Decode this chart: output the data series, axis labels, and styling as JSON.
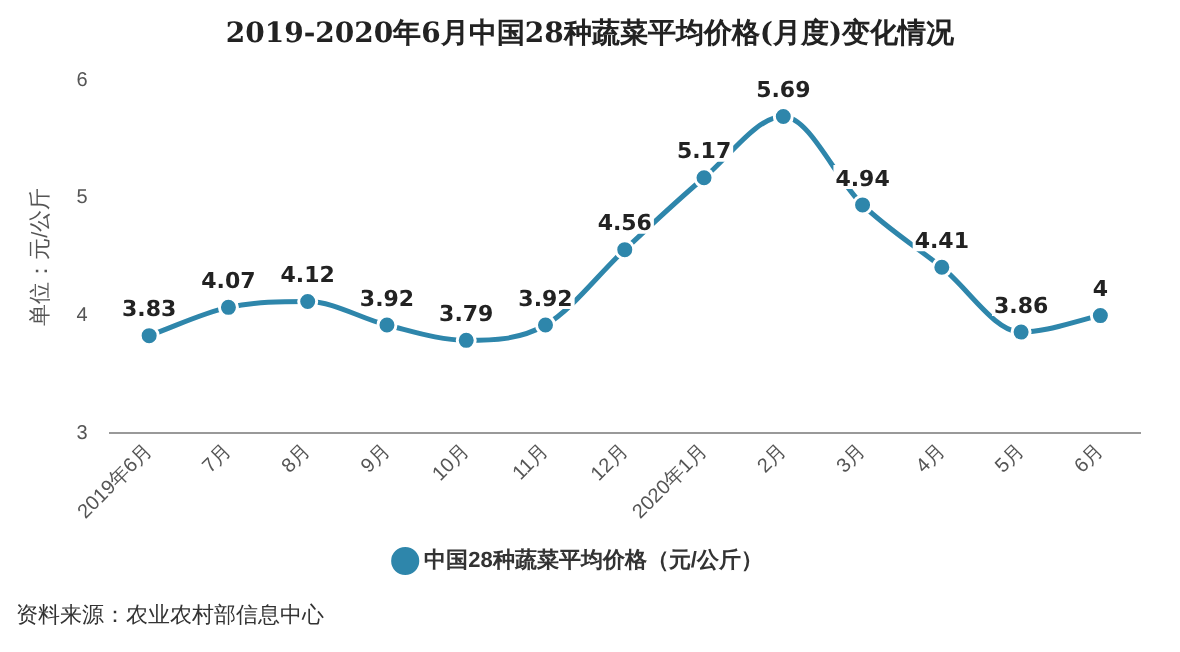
{
  "chart_data": {
    "type": "line",
    "title": "2019-2020年6月中国28种蔬菜平均价格(月度)变化情况",
    "ylabel": "单位：元/公斤",
    "categories": [
      "2019年6月",
      "7月",
      "8月",
      "9月",
      "10月",
      "11月",
      "12月",
      "2020年1月",
      "2月",
      "3月",
      "4月",
      "5月",
      "6月"
    ],
    "series": [
      {
        "name": "中国28种蔬菜平均价格（元/公斤）",
        "color": "#2e86ab",
        "values": [
          3.83,
          4.07,
          4.12,
          3.92,
          3.79,
          3.92,
          4.56,
          5.17,
          5.69,
          4.94,
          4.41,
          3.86,
          4
        ]
      }
    ],
    "ylim": [
      3,
      6
    ],
    "yticks": [
      3,
      4,
      5,
      6
    ],
    "grid": false,
    "legend": "bottom",
    "marker": "circle",
    "line_style": "solid",
    "data_labels": true,
    "annotations": [
      "资料来源：农业农村部信息中心"
    ]
  }
}
